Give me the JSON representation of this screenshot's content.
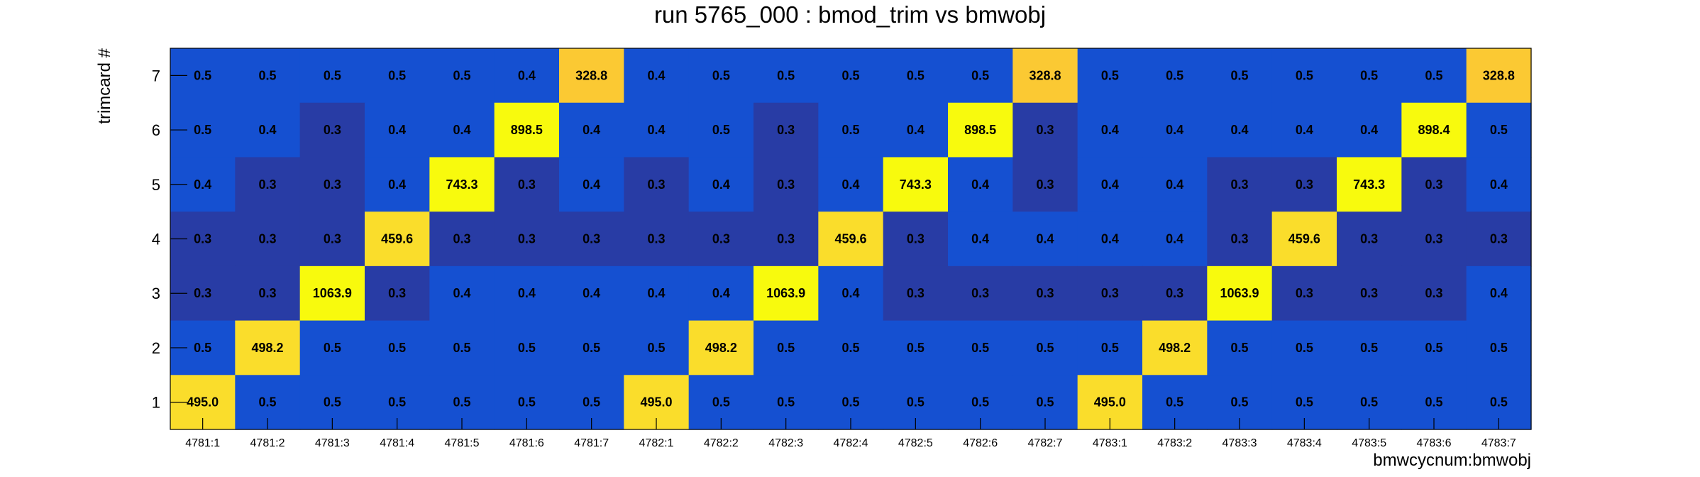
{
  "chart_data": {
    "type": "heatmap",
    "title": "run 5765_000 : bmod_trim vs bmwobj",
    "xlabel": "bmwcycnum:bmwobj",
    "ylabel": "trimcard #",
    "x_categories": [
      "4781:1",
      "4781:2",
      "4781:3",
      "4781:4",
      "4781:5",
      "4781:6",
      "4781:7",
      "4782:1",
      "4782:2",
      "4782:3",
      "4782:4",
      "4782:5",
      "4782:6",
      "4782:7",
      "4783:1",
      "4783:2",
      "4783:3",
      "4783:4",
      "4783:5",
      "4783:6",
      "4783:7"
    ],
    "y_categories": [
      "1",
      "2",
      "3",
      "4",
      "5",
      "6",
      "7"
    ],
    "rows": [
      {
        "y": "7",
        "values": [
          "0.5",
          "0.5",
          "0.5",
          "0.5",
          "0.5",
          "0.4",
          "328.8",
          "0.4",
          "0.5",
          "0.5",
          "0.5",
          "0.5",
          "0.5",
          "328.8",
          "0.5",
          "0.5",
          "0.5",
          "0.5",
          "0.5",
          "0.5",
          "328.8"
        ]
      },
      {
        "y": "6",
        "values": [
          "0.5",
          "0.4",
          "0.3",
          "0.4",
          "0.4",
          "898.5",
          "0.4",
          "0.4",
          "0.5",
          "0.3",
          "0.5",
          "0.4",
          "898.5",
          "0.3",
          "0.4",
          "0.4",
          "0.4",
          "0.4",
          "0.4",
          "898.4",
          "0.5"
        ]
      },
      {
        "y": "5",
        "values": [
          "0.4",
          "0.3",
          "0.3",
          "0.4",
          "743.3",
          "0.3",
          "0.4",
          "0.3",
          "0.4",
          "0.3",
          "0.4",
          "743.3",
          "0.4",
          "0.3",
          "0.4",
          "0.4",
          "0.3",
          "0.3",
          "743.3",
          "0.3",
          "0.4"
        ]
      },
      {
        "y": "4",
        "values": [
          "0.3",
          "0.3",
          "0.3",
          "459.6",
          "0.3",
          "0.3",
          "0.3",
          "0.3",
          "0.3",
          "0.3",
          "459.6",
          "0.3",
          "0.4",
          "0.4",
          "0.4",
          "0.4",
          "0.3",
          "459.6",
          "0.3",
          "0.3",
          "0.3"
        ]
      },
      {
        "y": "3",
        "values": [
          "0.3",
          "0.3",
          "1063.9",
          "0.3",
          "0.4",
          "0.4",
          "0.4",
          "0.4",
          "0.4",
          "1063.9",
          "0.4",
          "0.3",
          "0.3",
          "0.3",
          "0.3",
          "0.3",
          "1063.9",
          "0.3",
          "0.3",
          "0.3",
          "0.4"
        ]
      },
      {
        "y": "2",
        "values": [
          "0.5",
          "498.2",
          "0.5",
          "0.5",
          "0.5",
          "0.5",
          "0.5",
          "0.5",
          "498.2",
          "0.5",
          "0.5",
          "0.5",
          "0.5",
          "0.5",
          "0.5",
          "498.2",
          "0.5",
          "0.5",
          "0.5",
          "0.5",
          "0.5"
        ]
      },
      {
        "y": "1",
        "values": [
          "495.0",
          "0.5",
          "0.5",
          "0.5",
          "0.5",
          "0.5",
          "0.5",
          "495.0",
          "0.5",
          "0.5",
          "0.5",
          "0.5",
          "0.5",
          "0.5",
          "495.0",
          "0.5",
          "0.5",
          "0.5",
          "0.5",
          "0.5",
          "0.5"
        ]
      }
    ],
    "colors": {
      "low_blue": "#283ca5",
      "mid_blue": "#1550d1",
      "orange": "#fbc933",
      "gold": "#fadd2b",
      "yellow": "#f8fa0d"
    },
    "legend": "none",
    "grid": false
  }
}
